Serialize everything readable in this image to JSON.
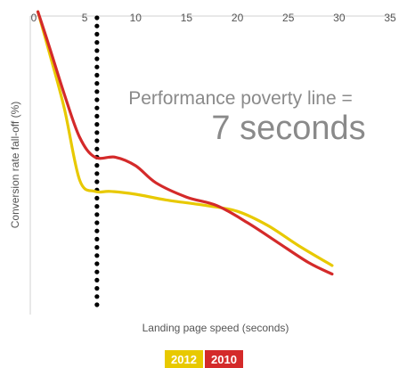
{
  "chart_data": {
    "type": "line",
    "xlabel": "Landing page speed (seconds)",
    "ylabel": "Conversion rate fall-off (%)",
    "xlim": [
      0,
      35
    ],
    "x_ticks": [
      "0",
      "5",
      "10",
      "15",
      "20",
      "25",
      "30",
      "35"
    ],
    "x_tick_values": [
      0,
      5,
      10,
      15,
      20,
      25,
      30,
      35
    ],
    "y_scale_labeled": false,
    "grid": false,
    "annotation": {
      "line1": "Performance poverty line =",
      "line2": "7 seconds",
      "x": 6.2,
      "style": "dotted vertical line"
    },
    "legend": {
      "placement": "bottom-center",
      "entries": [
        {
          "label": "2012",
          "color": "#e8c900"
        },
        {
          "label": "2010",
          "color": "#d42a2a"
        }
      ]
    },
    "series": [
      {
        "name": "2012",
        "color": "#e8c900",
        "points": [
          [
            0.4,
            0.99
          ],
          [
            1.5,
            0.85
          ],
          [
            3,
            0.65
          ],
          [
            4.5,
            0.4
          ],
          [
            6,
            0.36
          ],
          [
            7.5,
            0.36
          ],
          [
            10,
            0.35
          ],
          [
            13,
            0.33
          ],
          [
            17,
            0.31
          ],
          [
            20,
            0.29
          ],
          [
            23,
            0.24
          ],
          [
            26,
            0.17
          ],
          [
            29.3,
            0.1
          ]
        ]
      },
      {
        "name": "2010",
        "color": "#d42a2a",
        "points": [
          [
            0.4,
            0.99
          ],
          [
            1.5,
            0.87
          ],
          [
            3,
            0.7
          ],
          [
            4.5,
            0.55
          ],
          [
            6,
            0.48
          ],
          [
            8,
            0.48
          ],
          [
            10,
            0.45
          ],
          [
            12,
            0.39
          ],
          [
            15,
            0.34
          ],
          [
            18,
            0.31
          ],
          [
            21,
            0.25
          ],
          [
            24,
            0.18
          ],
          [
            27,
            0.11
          ],
          [
            29.3,
            0.07
          ]
        ]
      }
    ]
  }
}
